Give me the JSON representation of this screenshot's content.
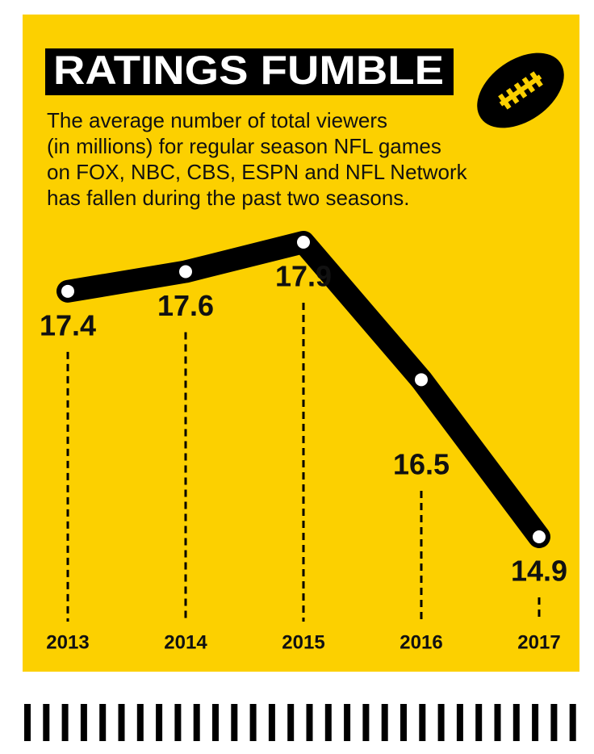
{
  "chart_data": {
    "type": "line",
    "title": "RATINGS FUMBLE",
    "subtitle": [
      "The average number of total viewers",
      "(in millions) for regular season NFL games",
      "on FOX, NBC, CBS, ESPN and NFL Network",
      "has fallen during the past two seasons."
    ],
    "categories": [
      "2013",
      "2014",
      "2015",
      "2016",
      "2017"
    ],
    "values": [
      17.4,
      17.6,
      17.9,
      16.5,
      14.9
    ],
    "color": "#000000"
  }
}
